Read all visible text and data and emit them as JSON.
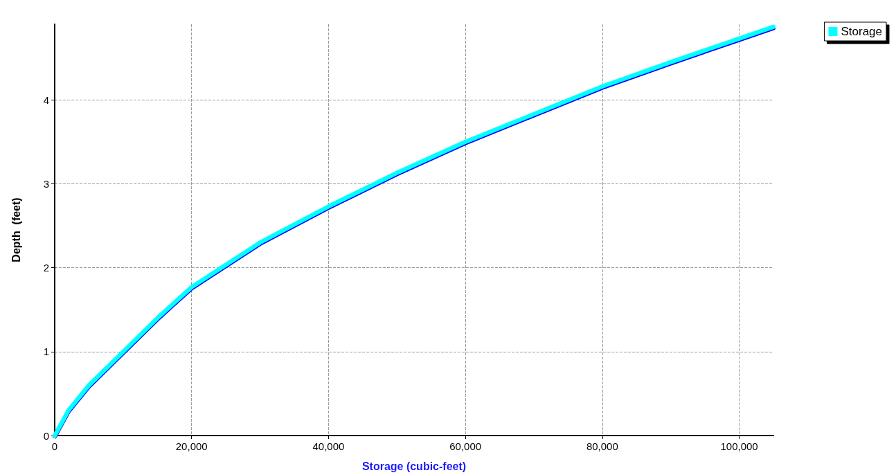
{
  "chart_data": {
    "type": "line",
    "xlabel": "Storage (cubic-feet)",
    "ylabel": "Depth  (feet)",
    "x": [
      0,
      2000,
      5000,
      10000,
      15000,
      20000,
      30000,
      40000,
      50000,
      60000,
      70000,
      80000,
      90000,
      100000,
      105000
    ],
    "series": [
      {
        "name": "Storage",
        "color": "#00ffff",
        "values": [
          0,
          0.3,
          0.6,
          1.0,
          1.4,
          1.77,
          2.3,
          2.73,
          3.13,
          3.5,
          3.83,
          4.16,
          4.45,
          4.73,
          4.87
        ]
      }
    ],
    "xlim": [
      0,
      105000
    ],
    "xticks": [
      0,
      {
        "value": 20000,
        "label": "20,000"
      },
      {
        "value": 40000,
        "label": "40,000"
      },
      {
        "value": 60000,
        "label": "60,000"
      },
      {
        "value": 80000,
        "label": "80,000"
      },
      {
        "value": 100000,
        "label": "100,000"
      }
    ],
    "ylim": [
      0,
      4.9
    ],
    "yticks": [
      0,
      1,
      2,
      3,
      4
    ],
    "grid": true,
    "legend": "top right",
    "marker": "none",
    "line_style": "solid"
  }
}
